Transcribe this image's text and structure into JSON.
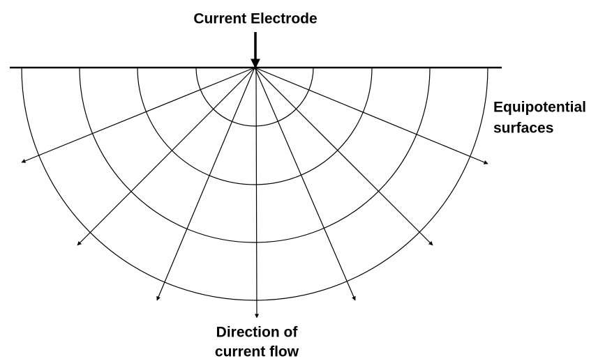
{
  "electrode": {
    "label": "Current Electrode"
  },
  "equipotential": {
    "label_lines": [
      "Equipotential",
      "surfaces"
    ]
  },
  "current_flow": {
    "label_lines": [
      "Direction of",
      "current flow"
    ]
  }
}
